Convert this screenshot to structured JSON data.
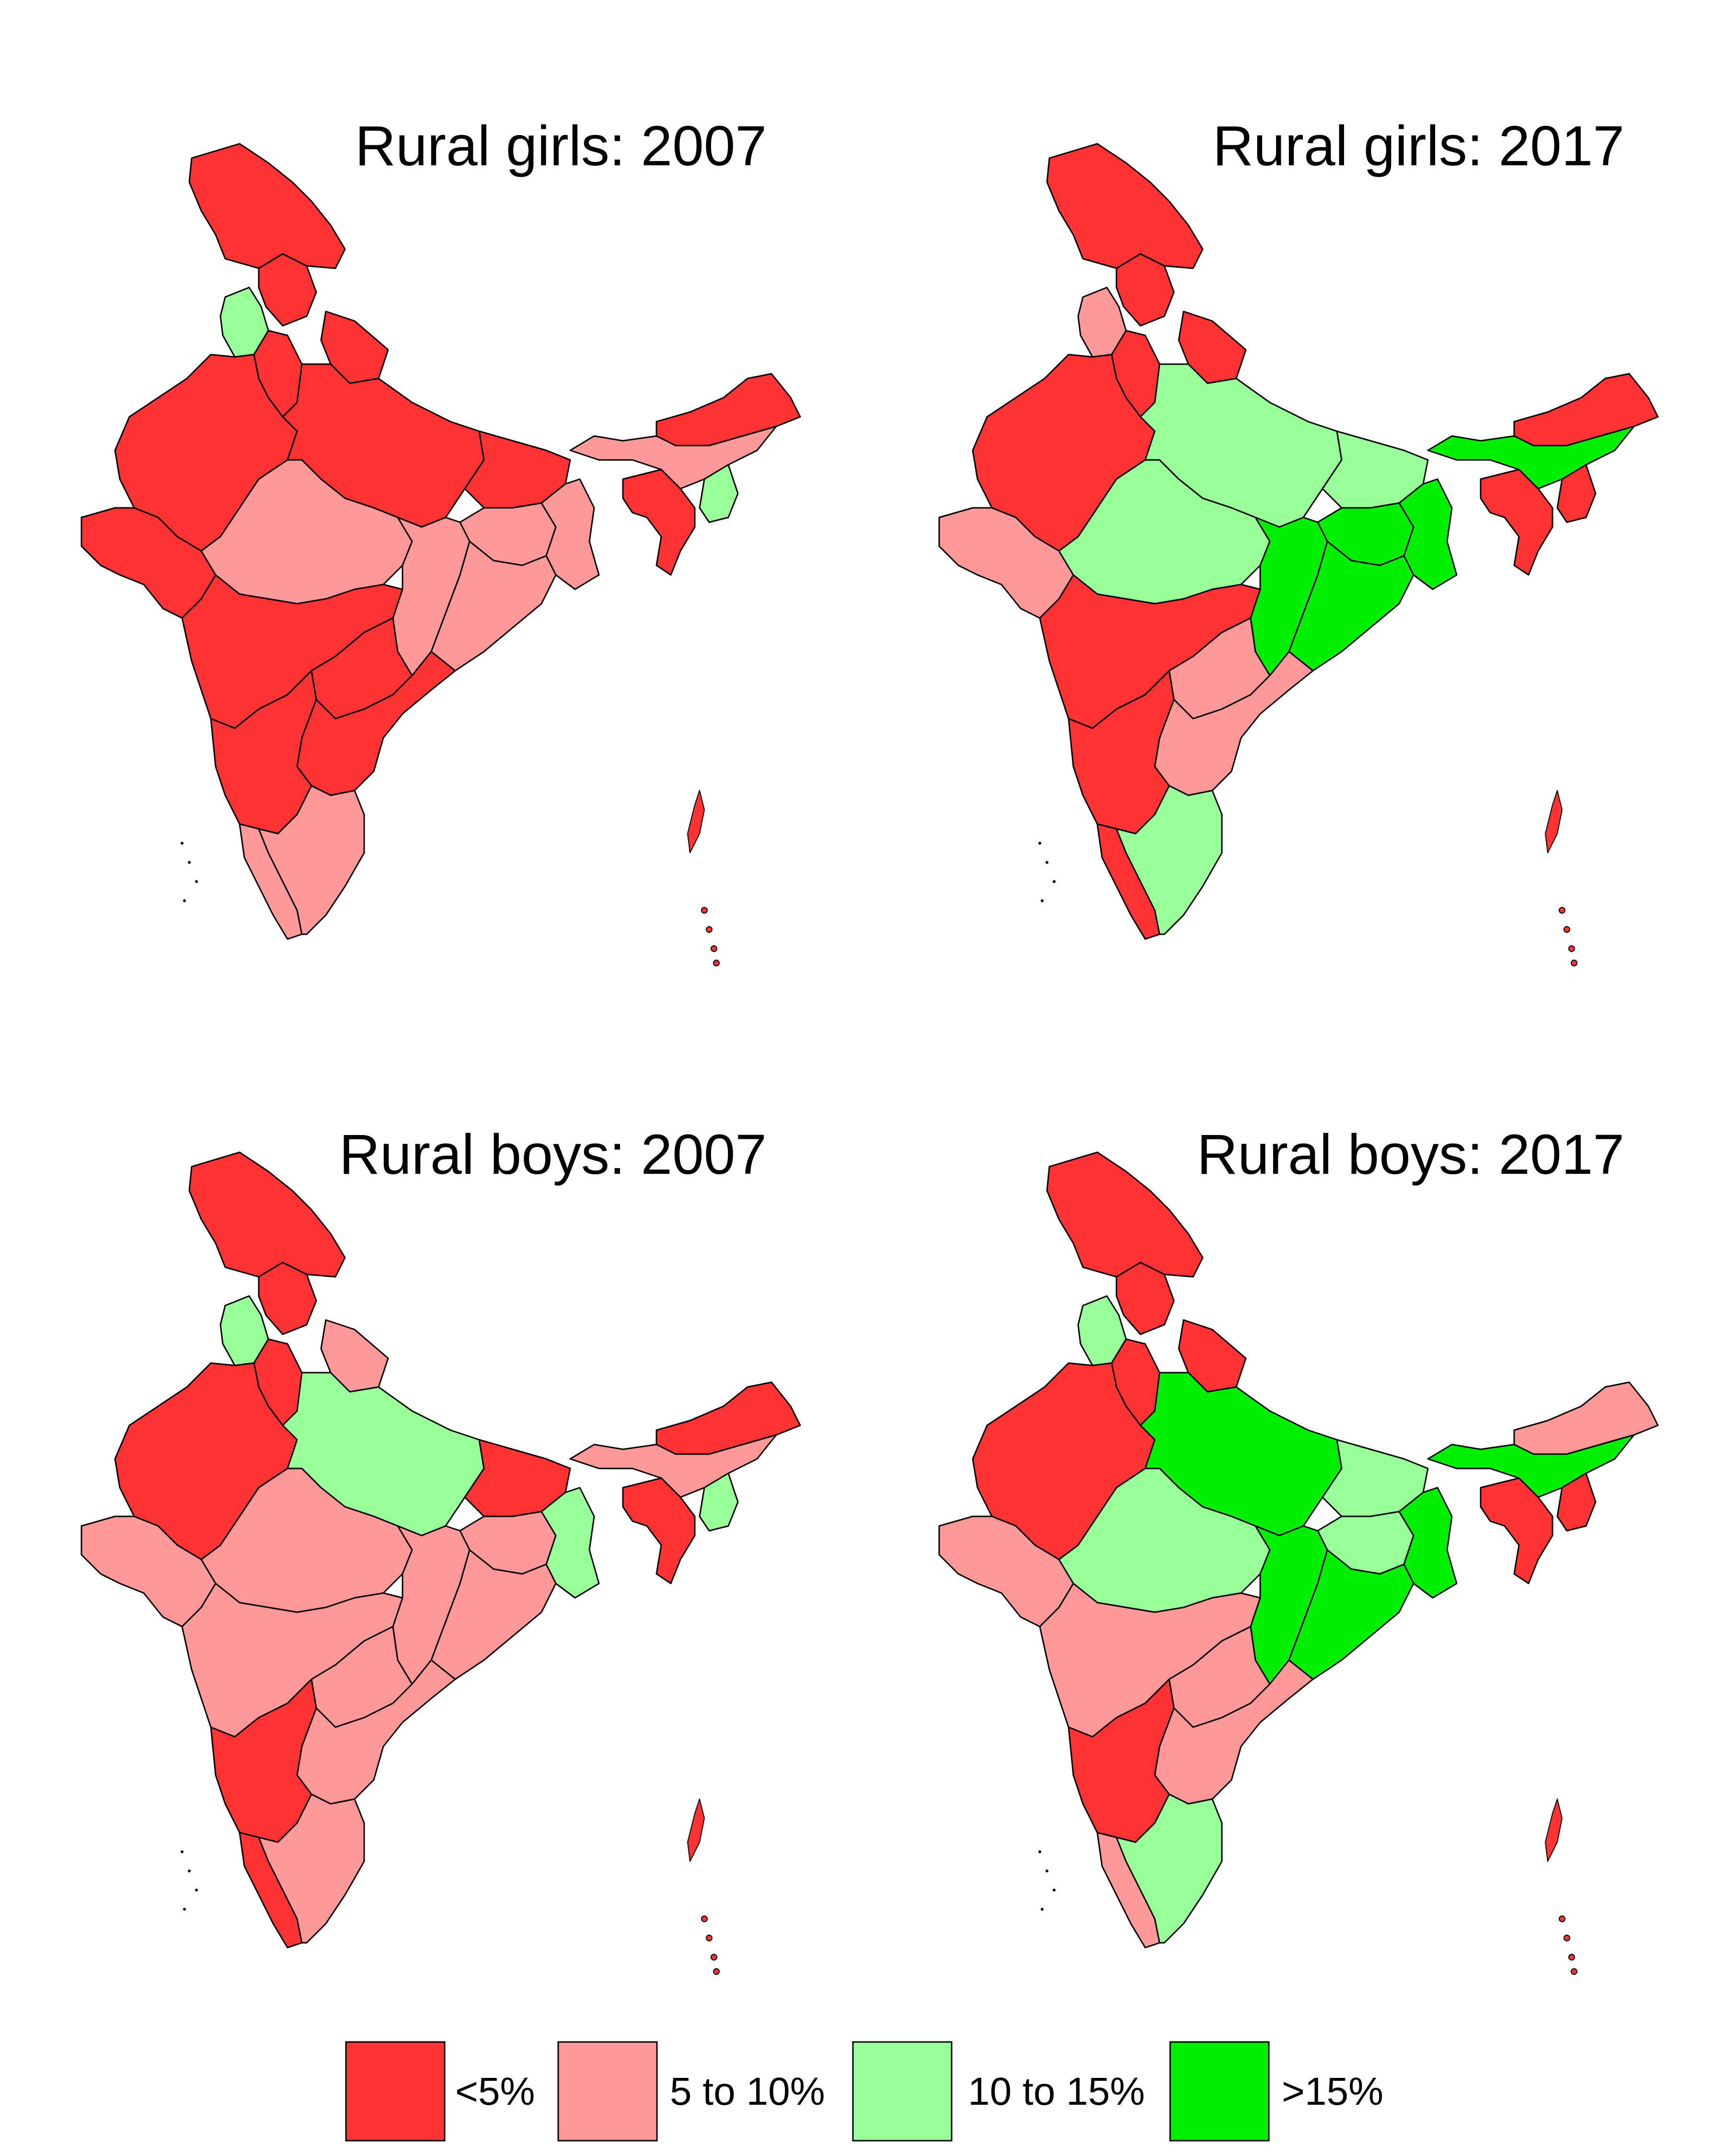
{
  "figure": {
    "panels": [
      {
        "id": "girls-2007",
        "title": "Rural girls: 2007",
        "regions": {
          "jk": "lt5",
          "hp": "lt5",
          "pb": "10to15",
          "uk": "lt5",
          "hr": "lt5",
          "rj": "lt5",
          "up": "lt5",
          "br": "lt5",
          "gj": "lt5",
          "mp": "5to10",
          "jh": "5to10",
          "wb": "5to10",
          "cg": "5to10",
          "or": "5to10",
          "mh": "lt5",
          "tg": "lt5",
          "ap": "lt5",
          "ka": "lt5",
          "kl": "5to10",
          "tn": "5to10",
          "ne_north": "lt5",
          "ne_mid": "5to10",
          "ne_south": "lt5",
          "ne_east": "10to15",
          "islands": "lt5"
        }
      },
      {
        "id": "girls-2017",
        "title": "Rural girls: 2017",
        "regions": {
          "jk": "lt5",
          "hp": "lt5",
          "pb": "5to10",
          "uk": "lt5",
          "hr": "lt5",
          "rj": "lt5",
          "up": "10to15",
          "br": "10to15",
          "gj": "5to10",
          "mp": "10to15",
          "jh": "gt15",
          "wb": "gt15",
          "cg": "gt15",
          "or": "gt15",
          "mh": "lt5",
          "tg": "5to10",
          "ap": "5to10",
          "ka": "lt5",
          "kl": "lt5",
          "tn": "10to15",
          "ne_north": "lt5",
          "ne_mid": "gt15",
          "ne_south": "lt5",
          "ne_east": "lt5",
          "islands": "lt5"
        }
      },
      {
        "id": "boys-2007",
        "title": "Rural boys: 2007",
        "regions": {
          "jk": "lt5",
          "hp": "lt5",
          "pb": "10to15",
          "uk": "5to10",
          "hr": "lt5",
          "rj": "lt5",
          "up": "10to15",
          "br": "lt5",
          "gj": "5to10",
          "mp": "5to10",
          "jh": "5to10",
          "wb": "10to15",
          "cg": "5to10",
          "or": "5to10",
          "mh": "5to10",
          "tg": "5to10",
          "ap": "5to10",
          "ka": "lt5",
          "kl": "lt5",
          "tn": "5to10",
          "ne_north": "lt5",
          "ne_mid": "5to10",
          "ne_south": "lt5",
          "ne_east": "10to15",
          "islands": "lt5"
        }
      },
      {
        "id": "boys-2017",
        "title": "Rural boys: 2017",
        "regions": {
          "jk": "lt5",
          "hp": "lt5",
          "pb": "10to15",
          "uk": "lt5",
          "hr": "lt5",
          "rj": "lt5",
          "up": "gt15",
          "br": "10to15",
          "gj": "5to10",
          "mp": "10to15",
          "jh": "10to15",
          "wb": "gt15",
          "cg": "gt15",
          "or": "gt15",
          "mh": "5to10",
          "tg": "5to10",
          "ap": "5to10",
          "ka": "lt5",
          "kl": "5to10",
          "tn": "10to15",
          "ne_north": "5to10",
          "ne_mid": "gt15",
          "ne_south": "lt5",
          "ne_east": "lt5",
          "islands": "lt5"
        }
      }
    ]
  },
  "legend": {
    "items": [
      {
        "key": "lt5",
        "label": "<5%",
        "color": "#ff3333"
      },
      {
        "key": "5to10",
        "label": "5 to 10%",
        "color": "#ff9999"
      },
      {
        "key": "10to15",
        "label": "10 to 15%",
        "color": "#99ff99"
      },
      {
        "key": "gt15",
        "label": ">15%",
        "color": "#00ee00"
      }
    ]
  }
}
